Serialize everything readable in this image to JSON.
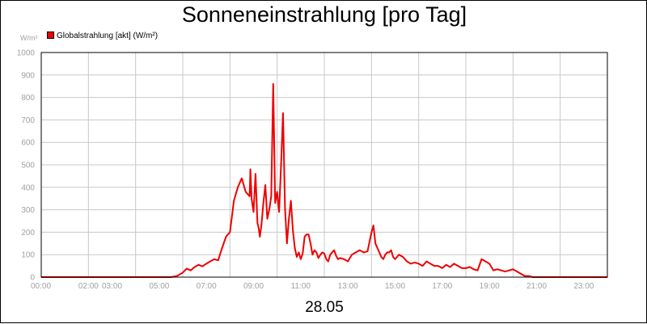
{
  "chart_data": {
    "type": "line",
    "title": "Sonneneinstrahlung [pro Tag]",
    "ylabel": "W/m²",
    "xlabel": "28.05",
    "ylim": [
      0,
      1000
    ],
    "xlim": [
      "00:00",
      "24:00"
    ],
    "yticks": [
      0,
      100,
      200,
      300,
      400,
      500,
      600,
      700,
      800,
      900,
      1000
    ],
    "xtick_labels": [
      "00:00",
      "02:00",
      "03:00",
      "05:00",
      "07:00",
      "09:00",
      "11:00",
      "13:00",
      "15:00",
      "17:00",
      "19:00",
      "21:00",
      "23:00"
    ],
    "grid": true,
    "legend_position": "top-left",
    "series": [
      {
        "name": "Globalstrahlung [akt] (W/m²)",
        "color": "#ee0000",
        "x": [
          "00:00",
          "05:30",
          "05:45",
          "06:00",
          "06:10",
          "06:20",
          "06:30",
          "06:40",
          "06:50",
          "07:00",
          "07:10",
          "07:20",
          "07:30",
          "07:40",
          "07:50",
          "08:00",
          "08:10",
          "08:20",
          "08:30",
          "08:40",
          "08:50",
          "08:52",
          "08:55",
          "09:00",
          "09:05",
          "09:10",
          "09:13",
          "09:16",
          "09:20",
          "09:25",
          "09:30",
          "09:35",
          "09:40",
          "09:45",
          "09:50",
          "09:55",
          "10:00",
          "10:05",
          "10:10",
          "10:15",
          "10:20",
          "10:25",
          "10:30",
          "10:35",
          "10:40",
          "10:45",
          "10:50",
          "10:55",
          "11:00",
          "11:05",
          "11:10",
          "11:15",
          "11:20",
          "11:25",
          "11:30",
          "11:35",
          "11:40",
          "11:45",
          "11:50",
          "11:55",
          "12:00",
          "12:05",
          "12:10",
          "12:15",
          "12:20",
          "12:25",
          "12:30",
          "12:35",
          "12:40",
          "12:50",
          "13:00",
          "13:10",
          "13:20",
          "13:30",
          "13:40",
          "13:50",
          "14:00",
          "14:05",
          "14:10",
          "14:15",
          "14:20",
          "14:25",
          "14:30",
          "14:35",
          "14:40",
          "14:45",
          "14:50",
          "14:55",
          "15:00",
          "15:10",
          "15:20",
          "15:30",
          "15:40",
          "15:50",
          "16:00",
          "16:10",
          "16:20",
          "16:30",
          "16:40",
          "16:50",
          "17:00",
          "17:10",
          "17:20",
          "17:30",
          "17:40",
          "17:50",
          "18:00",
          "18:10",
          "18:20",
          "18:30",
          "18:40",
          "18:50",
          "19:00",
          "19:10",
          "19:20",
          "19:30",
          "19:40",
          "19:50",
          "20:00",
          "20:10",
          "20:20",
          "20:30",
          "20:40",
          "20:50",
          "21:00",
          "22:00",
          "24:00"
        ],
        "values": [
          0,
          0,
          5,
          20,
          38,
          30,
          45,
          55,
          48,
          60,
          70,
          80,
          75,
          130,
          180,
          200,
          340,
          400,
          440,
          380,
          360,
          480,
          350,
          290,
          460,
          240,
          220,
          180,
          230,
          330,
          410,
          260,
          300,
          360,
          860,
          330,
          380,
          290,
          500,
          730,
          310,
          150,
          260,
          340,
          210,
          130,
          90,
          110,
          80,
          105,
          180,
          190,
          190,
          150,
          100,
          120,
          110,
          85,
          100,
          110,
          105,
          80,
          70,
          100,
          110,
          120,
          95,
          80,
          85,
          80,
          70,
          100,
          110,
          120,
          110,
          115,
          200,
          230,
          150,
          130,
          110,
          90,
          80,
          100,
          110,
          110,
          120,
          90,
          80,
          100,
          90,
          70,
          60,
          65,
          60,
          50,
          70,
          60,
          50,
          50,
          40,
          55,
          45,
          60,
          50,
          40,
          40,
          45,
          35,
          30,
          80,
          70,
          60,
          30,
          35,
          30,
          25,
          30,
          35,
          25,
          15,
          5,
          5,
          0,
          0,
          0,
          0
        ]
      }
    ]
  }
}
